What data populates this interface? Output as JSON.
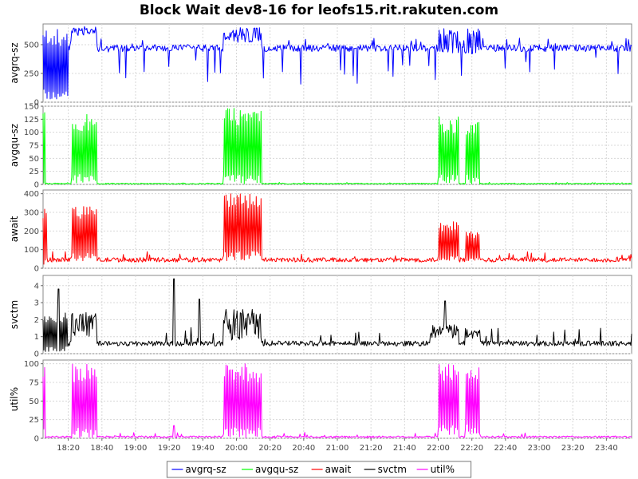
{
  "chart_data": {
    "type": "line",
    "title": "Block Wait dev8-16 for leofs15.rit.rakuten.com",
    "x_ticks": [
      "18:20",
      "18:40",
      "19:00",
      "19:20",
      "19:40",
      "20:00",
      "20:20",
      "20:40",
      "21:00",
      "21:20",
      "21:40",
      "22:00",
      "22:20",
      "22:40",
      "23:00",
      "23:20",
      "23:40"
    ],
    "x_range": [
      "18:05",
      "23:55"
    ],
    "grid": true,
    "legend_position": "bottom",
    "panels": [
      {
        "name": "avgrq-sz",
        "ylabel": "avgrq-sz",
        "color": "#0000ff",
        "ylim": [
          0,
          680
        ],
        "yticks": [
          0,
          250,
          500
        ],
        "baseline": 470,
        "noise": 30,
        "spike_down_prob": 0.05,
        "spike_down_to": 150,
        "spike_up_to": 560,
        "bursts": [
          {
            "start": "18:05",
            "end": "18:20",
            "low": 20,
            "high": 640,
            "style": "toggle"
          },
          {
            "start": "18:22",
            "end": "18:37",
            "low": 580,
            "high": 660,
            "style": "band"
          },
          {
            "start": "19:52",
            "end": "20:15",
            "low": 520,
            "high": 650,
            "style": "band"
          },
          {
            "start": "22:00",
            "end": "22:12",
            "low": 420,
            "high": 640,
            "style": "mixed"
          },
          {
            "start": "22:16",
            "end": "22:25",
            "low": 420,
            "high": 640,
            "style": "mixed"
          }
        ]
      },
      {
        "name": "avgqu-sz",
        "ylabel": "avgqu-sz",
        "color": "#00ff00",
        "ylim": [
          0,
          150
        ],
        "yticks": [
          0,
          25,
          50,
          75,
          100,
          125,
          150
        ],
        "baseline": 1.5,
        "noise": 1,
        "spike_down_prob": 0,
        "spike_down_to": 0,
        "spike_up_to": 4,
        "bursts": [
          {
            "start": "18:05",
            "end": "18:06",
            "low": 0,
            "high": 140,
            "style": "toggle"
          },
          {
            "start": "18:22",
            "end": "18:37",
            "low": 0,
            "high": 135,
            "style": "toggle"
          },
          {
            "start": "19:52",
            "end": "20:15",
            "low": 0,
            "high": 148,
            "style": "toggle"
          },
          {
            "start": "22:00",
            "end": "22:12",
            "low": 0,
            "high": 130,
            "style": "toggle"
          },
          {
            "start": "22:16",
            "end": "22:25",
            "low": 0,
            "high": 125,
            "style": "toggle"
          }
        ]
      },
      {
        "name": "await",
        "ylabel": "await",
        "color": "#ff0000",
        "ylim": [
          0,
          420
        ],
        "yticks": [
          0,
          100,
          200,
          300,
          400
        ],
        "baseline": 45,
        "noise": 12,
        "spike_down_prob": 0,
        "spike_down_to": 10,
        "spike_up_to": 90,
        "bursts": [
          {
            "start": "18:05",
            "end": "18:07",
            "low": 0,
            "high": 350,
            "style": "toggle"
          },
          {
            "start": "18:22",
            "end": "18:37",
            "low": 40,
            "high": 340,
            "style": "toggle"
          },
          {
            "start": "19:52",
            "end": "20:15",
            "low": 40,
            "high": 400,
            "style": "toggle"
          },
          {
            "start": "22:00",
            "end": "22:12",
            "low": 40,
            "high": 250,
            "style": "toggle"
          },
          {
            "start": "22:16",
            "end": "22:25",
            "low": 40,
            "high": 200,
            "style": "toggle"
          }
        ]
      },
      {
        "name": "svctm",
        "ylabel": "svctm",
        "color": "#000000",
        "ylim": [
          0,
          4.6
        ],
        "yticks": [
          0,
          1,
          2,
          3,
          4
        ],
        "baseline": 0.6,
        "noise": 0.15,
        "spike_down_prob": 0,
        "spike_down_to": 0.3,
        "spike_up_to": 1.6,
        "bursts": [
          {
            "start": "18:05",
            "end": "18:20",
            "low": 0.1,
            "high": 2.4,
            "style": "toggle"
          },
          {
            "start": "18:22",
            "end": "18:37",
            "low": 1.0,
            "high": 2.5,
            "style": "band"
          },
          {
            "start": "19:52",
            "end": "20:15",
            "low": 0.8,
            "high": 2.8,
            "style": "band"
          },
          {
            "start": "21:55",
            "end": "22:12",
            "low": 0.9,
            "high": 1.7,
            "style": "band"
          },
          {
            "start": "22:16",
            "end": "22:25",
            "low": 0.9,
            "high": 1.5,
            "style": "band"
          }
        ],
        "spikes": [
          {
            "at": "19:23",
            "value": 4.4
          },
          {
            "at": "19:38",
            "value": 3.2
          },
          {
            "at": "18:14",
            "value": 3.8
          },
          {
            "at": "22:04",
            "value": 3.1
          }
        ]
      },
      {
        "name": "util%",
        "ylabel": "util%",
        "color": "#ff00ff",
        "ylim": [
          0,
          105
        ],
        "yticks": [
          0,
          25,
          50,
          75,
          100
        ],
        "baseline": 2,
        "noise": 1.2,
        "spike_down_prob": 0,
        "spike_down_to": 0,
        "spike_up_to": 8,
        "bursts": [
          {
            "start": "18:05",
            "end": "18:06",
            "low": 0,
            "high": 100,
            "style": "toggle"
          },
          {
            "start": "18:22",
            "end": "18:37",
            "low": 0,
            "high": 100,
            "style": "toggle"
          },
          {
            "start": "19:52",
            "end": "20:15",
            "low": 0,
            "high": 100,
            "style": "toggle"
          },
          {
            "start": "22:00",
            "end": "22:12",
            "low": 5,
            "high": 100,
            "style": "toggle"
          },
          {
            "start": "22:16",
            "end": "22:25",
            "low": 5,
            "high": 100,
            "style": "toggle"
          }
        ],
        "spikes": [
          {
            "at": "19:23",
            "value": 17
          }
        ]
      }
    ],
    "legend": [
      {
        "label": "avgrq-sz",
        "color": "#0000ff"
      },
      {
        "label": "avgqu-sz",
        "color": "#00ff00"
      },
      {
        "label": "await",
        "color": "#ff0000"
      },
      {
        "label": "svctm",
        "color": "#000000"
      },
      {
        "label": "util%",
        "color": "#ff00ff"
      }
    ]
  }
}
